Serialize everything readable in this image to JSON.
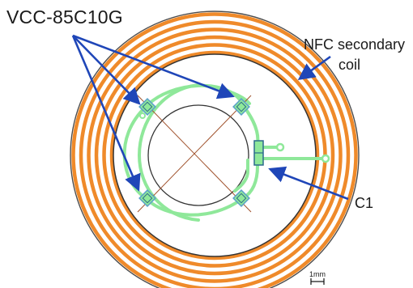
{
  "labels": {
    "chip": "VCC-85C10G",
    "coil_line1": "NFC secondary",
    "coil_line2": "coil",
    "capacitor": "C1",
    "scale": "1mm"
  },
  "colors": {
    "coil": "#ef8a2a",
    "trace": "#8fe89a",
    "arrow": "#1f46b8",
    "outline": "#4d4d4d",
    "inner_cross": "#a0522d",
    "pad": "#5aa0c8"
  },
  "coil": {
    "turns": 6
  }
}
